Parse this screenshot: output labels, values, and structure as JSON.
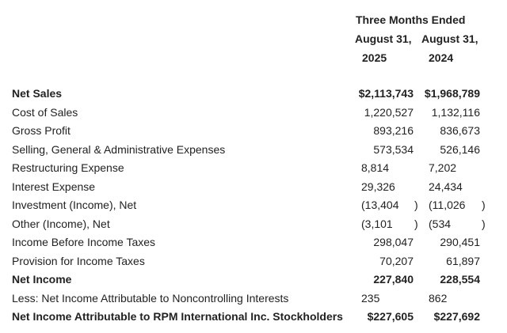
{
  "header": {
    "period": "Three Months Ended",
    "col1_date": "August 31,",
    "col2_date": "August 31,",
    "col1_year": "2025",
    "col2_year": "2024"
  },
  "rows": [
    {
      "label": "Net Sales",
      "v1": "$2,113,743",
      "v2": "$1,968,789",
      "bold": true
    },
    {
      "label": "Cost of Sales",
      "v1": "1,220,527",
      "v2": "1,132,116"
    },
    {
      "label": "Gross Profit",
      "v1": "893,216",
      "v2": "836,673"
    },
    {
      "label": "Selling, General & Administrative Expenses",
      "v1": "573,534",
      "v2": "526,146"
    },
    {
      "label": "Restructuring Expense",
      "v1": "8,814",
      "v2": "7,202"
    },
    {
      "label": "Interest Expense",
      "v1": "29,326",
      "v2": "24,434"
    },
    {
      "label": "Investment (Income), Net",
      "v1": "(13,404",
      "p1": ")",
      "v2": "(11,026",
      "p2": ")"
    },
    {
      "label": "Other (Income), Net",
      "v1": "(3,101",
      "p1": ")",
      "v2": "(534",
      "p2": ")"
    },
    {
      "label": "Income Before Income Taxes",
      "v1": "298,047",
      "v2": "290,451"
    },
    {
      "label": "Provision for Income Taxes",
      "v1": "70,207",
      "v2": "61,897"
    },
    {
      "label": "Net Income",
      "v1": "227,840",
      "v2": "228,554",
      "bold": true
    },
    {
      "label": "Less: Net Income Attributable to Noncontrolling Interests",
      "v1": "235",
      "v2": "862"
    },
    {
      "label": "Net Income Attributable to RPM International Inc. Stockholders",
      "v1": "$227,605",
      "v2": "$227,692",
      "bold": true
    }
  ]
}
